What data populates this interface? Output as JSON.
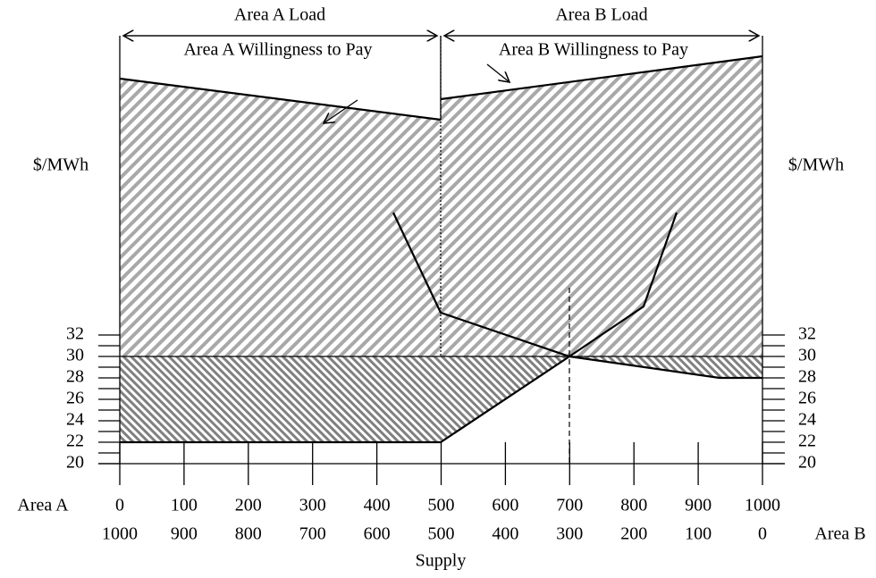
{
  "axes": {
    "y_label": "$/MWh",
    "yticks": [
      20,
      22,
      24,
      26,
      28,
      30,
      32
    ],
    "area_a_label": "Area A",
    "area_a_ticks": [
      0,
      100,
      200,
      300,
      400,
      500,
      600,
      700,
      800,
      900,
      1000
    ],
    "area_b_label": "Area B",
    "area_b_ticks": [
      1000,
      900,
      800,
      700,
      600,
      500,
      400,
      300,
      200,
      100,
      0
    ],
    "x_label": "Supply"
  },
  "annotations": {
    "area_a_load": "Area A Load",
    "area_b_load": "Area B Load",
    "area_a_wtp": "Area A Willingness to Pay",
    "area_b_wtp": "Area B Willingness to Pay"
  }
}
